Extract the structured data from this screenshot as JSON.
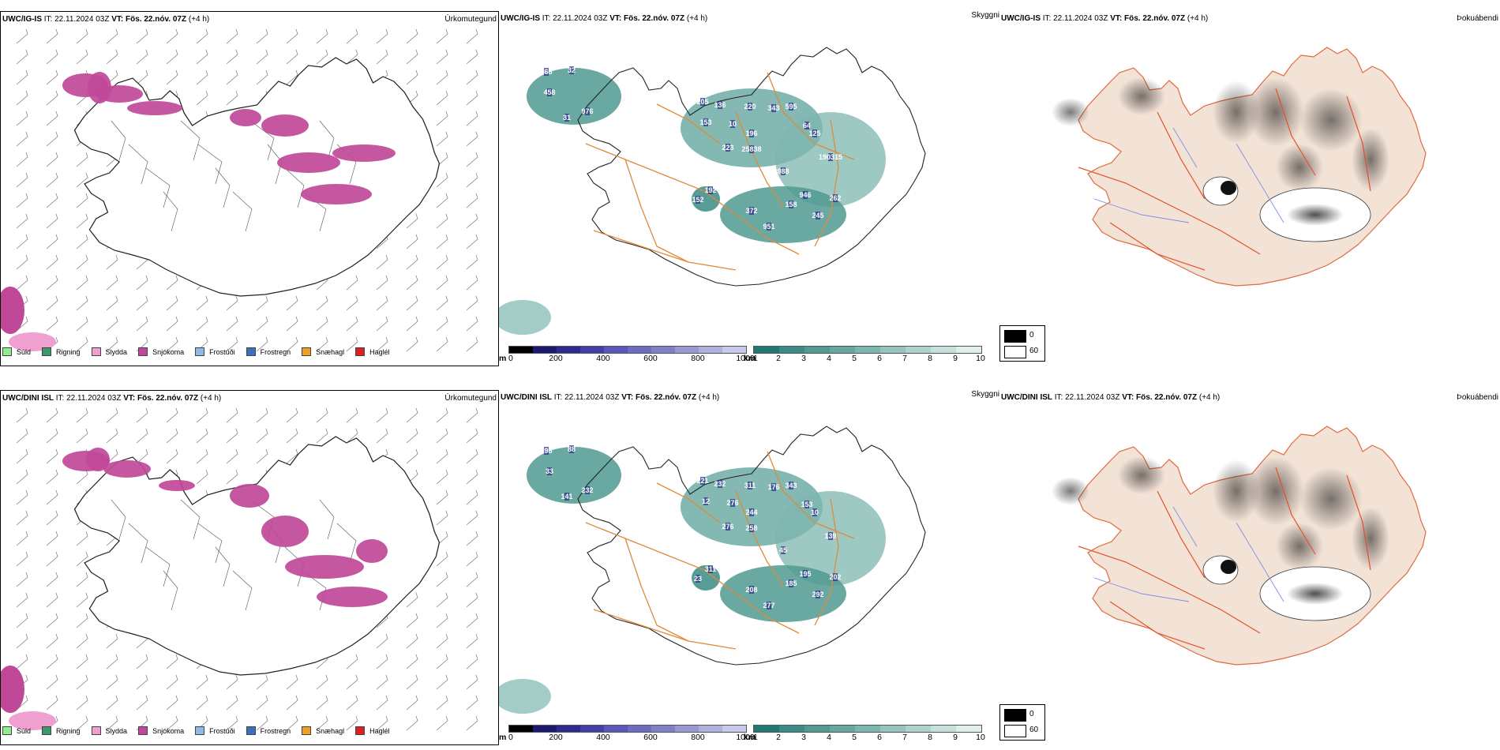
{
  "rows": [
    {
      "model": "UWC/IG-IS",
      "it_label": "IT:",
      "it_value": "22.11.2024 03Z",
      "vt_label": "VT:",
      "vt_value": "Fös. 22.nóv. 07Z",
      "lead": "(+4 h)",
      "heights": [
        "568",
        "32",
        "458",
        "976",
        "31",
        "205",
        "136",
        "153",
        "10",
        "220",
        "595",
        "343",
        "196",
        "223",
        "25838",
        "125",
        "190315",
        "64",
        "988",
        "152",
        "192",
        "946",
        "372",
        "158",
        "245",
        "262",
        "951"
      ]
    },
    {
      "model": "UWC/DINI ISL",
      "it_label": "IT:",
      "it_value": "22.11.2024 03Z",
      "vt_label": "VT:",
      "vt_value": "Fös. 22.nóv. 07Z",
      "lead": "(+4 h)",
      "heights": [
        "298",
        "88",
        "33",
        "232",
        "141",
        "221",
        "232",
        "12",
        "276",
        "311",
        "343",
        "176",
        "244",
        "276",
        "258",
        "10",
        "139",
        "153",
        "45",
        "23",
        "311",
        "195",
        "208",
        "185",
        "292",
        "202",
        "277"
      ]
    }
  ],
  "panel_labels": {
    "precip": "Úrkomutegund",
    "cloud": "Skyggni",
    "fog": "Þokuábendi"
  },
  "precip_legend": [
    {
      "label": "Súld",
      "color": "#90ee90"
    },
    {
      "label": "Rigning",
      "color": "#3a9a6a"
    },
    {
      "label": "Slydda",
      "color": "#f0a0d0"
    },
    {
      "label": "Snjókoma",
      "color": "#c04898"
    },
    {
      "label": "Frostúði",
      "color": "#90b8e8"
    },
    {
      "label": "Frostregn",
      "color": "#3a70c0"
    },
    {
      "label": "Snæhagl",
      "color": "#f0a020"
    },
    {
      "label": "Haglél",
      "color": "#e02020"
    }
  ],
  "height_bar": {
    "unit": "m",
    "ticks": [
      "0",
      "200",
      "400",
      "600",
      "800",
      "1000"
    ],
    "colors": [
      "#000000",
      "#1a1a6e",
      "#2b2b8f",
      "#4040a8",
      "#5858b8",
      "#6c6cc0",
      "#8080c8",
      "#9898d2",
      "#b0b0dc",
      "#c8c8e8"
    ]
  },
  "vis_bar": {
    "unit": "km",
    "ticks": [
      "1",
      "2",
      "3",
      "4",
      "5",
      "6",
      "7",
      "8",
      "9",
      "10"
    ],
    "colors": [
      "#1f7a72",
      "#3a8c84",
      "#4f9a92",
      "#65a8a0",
      "#7db6ae",
      "#96c4bc",
      "#b0d2cc",
      "#c8e0dc",
      "#e0eeec"
    ]
  },
  "fog_key": {
    "high_value": "0",
    "low_value": "60"
  }
}
